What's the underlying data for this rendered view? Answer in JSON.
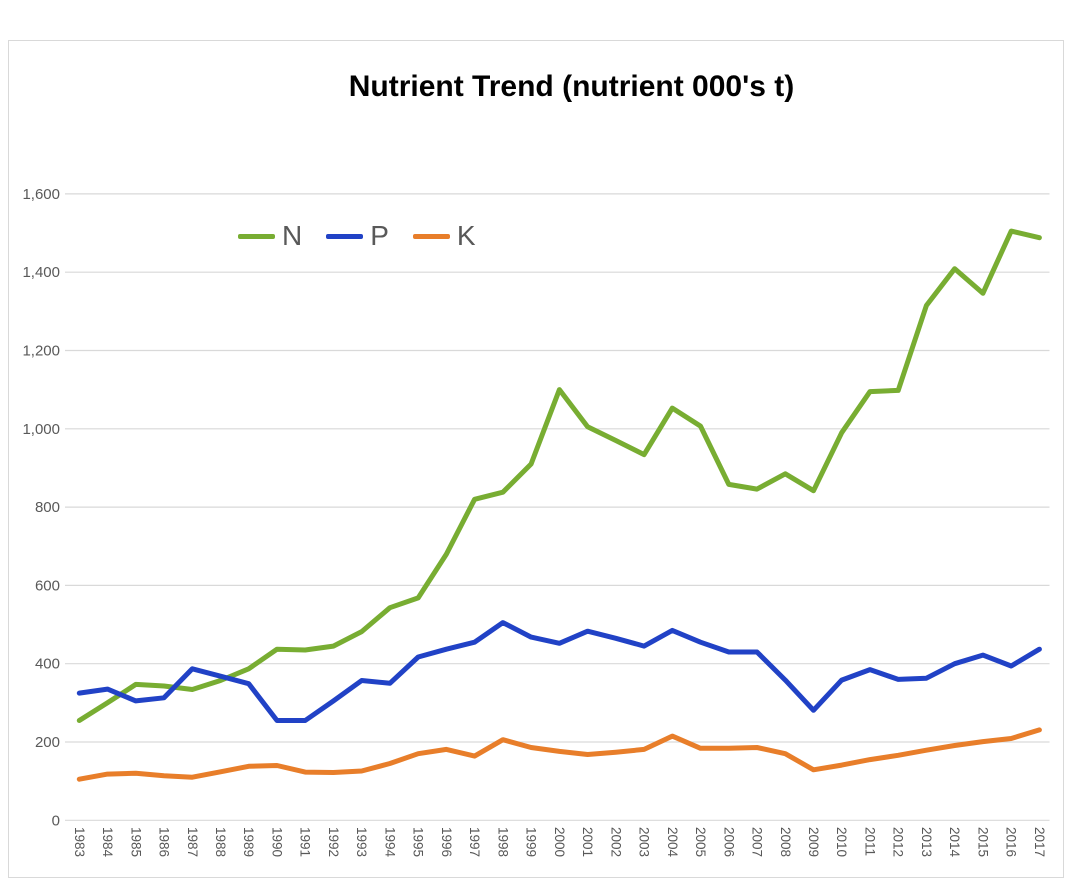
{
  "chart": {
    "title": "Nutrient Trend (nutrient 000's t)"
  },
  "chart_data": {
    "type": "line",
    "title": "Nutrient Trend (nutrient 000's t)",
    "xlabel": "",
    "ylabel": "",
    "x": [
      1983,
      1984,
      1985,
      1986,
      1987,
      1988,
      1989,
      1990,
      1991,
      1992,
      1993,
      1994,
      1995,
      1996,
      1997,
      1998,
      1999,
      2000,
      2001,
      2002,
      2003,
      2004,
      2005,
      2006,
      2007,
      2008,
      2009,
      2010,
      2011,
      2012,
      2013,
      2014,
      2015,
      2016,
      2017
    ],
    "series": [
      {
        "name": "N",
        "color": "#78AD32",
        "values": [
          255,
          300,
          347,
          343,
          334,
          357,
          387,
          437,
          435,
          445,
          482,
          543,
          568,
          680,
          820,
          838,
          910,
          1100,
          1005,
          970,
          934,
          1053,
          1007,
          858,
          846,
          885,
          842,
          990,
          1095,
          1098,
          1315,
          1409,
          1346,
          1505,
          1488
        ]
      },
      {
        "name": "P",
        "color": "#2142C6",
        "values": [
          325,
          335,
          305,
          313,
          387,
          368,
          349,
          255,
          255,
          305,
          357,
          350,
          417,
          437,
          455,
          505,
          468,
          452,
          483,
          465,
          445,
          485,
          455,
          430,
          430,
          358,
          281,
          358,
          385,
          360,
          363,
          400,
          422,
          394,
          437
        ]
      },
      {
        "name": "K",
        "color": "#E87E2A",
        "values": [
          105,
          118,
          120,
          114,
          110,
          124,
          138,
          140,
          123,
          122,
          126,
          145,
          170,
          181,
          164,
          206,
          186,
          176,
          168,
          174,
          181,
          215,
          184,
          184,
          186,
          170,
          129,
          141,
          155,
          166,
          179,
          191,
          201,
          209,
          231
        ]
      }
    ],
    "ylim": [
      0,
      1600
    ],
    "ytick_step": 200,
    "y_tick_labels": [
      "0",
      "200",
      "400",
      "600",
      "800",
      "1,000",
      "1,200",
      "1,400",
      "1,600"
    ],
    "grid": "horizontal",
    "legend_position": "inside-top-left",
    "x_label_rotation_deg": 90,
    "colors": {
      "gridline": "#d9d9d9",
      "axis_label": "#595959",
      "frame_border": "#d9d9d9",
      "title": "#000000",
      "background": "#ffffff"
    }
  }
}
